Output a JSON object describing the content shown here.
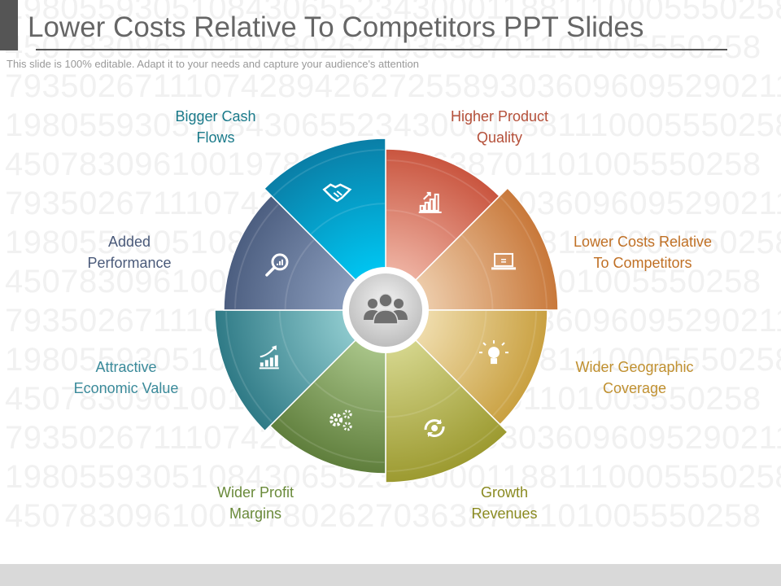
{
  "header": {
    "title": "Lower Costs Relative To Competitors PPT Slides",
    "subtitle": "This slide is 100% editable. Adapt it to your needs and capture your audience's attention"
  },
  "watermark": {
    "rows": [
      "1980559305108430655234300011881110005550258",
      "4507830961001978026270363870110100555025​8",
      "7935026711107428942627255893036096095290211"
    ]
  },
  "center": {
    "icon": "people-group-icon",
    "color": "#7a7a7a"
  },
  "segments": [
    {
      "label_lines": [
        "Higher Product",
        "Quality"
      ],
      "icon": "bar-chart-growth-icon",
      "color": "#c9553f",
      "light": "#eeb2a2",
      "label_color": "#b5503a"
    },
    {
      "label_lines": [
        "Lower Costs Relative",
        "To Competitors"
      ],
      "icon": "laptop-icon",
      "color": "#c8783a",
      "light": "#eccaa8",
      "label_color": "#c07025"
    },
    {
      "label_lines": [
        "Wider Geographic",
        "Coverage"
      ],
      "icon": "lightbulb-icon",
      "color": "#c9a040",
      "light": "#efdcac",
      "label_color": "#c09030"
    },
    {
      "label_lines": [
        "Growth",
        "Revenues"
      ],
      "icon": "refresh-gear-icon",
      "color": "#9c9a30",
      "light": "#d3d48a",
      "label_color": "#8a8a20"
    },
    {
      "label_lines": [
        "Wider Profit",
        "Margins"
      ],
      "icon": "gears-icon",
      "color": "#5f7e3c",
      "light": "#a8c488",
      "label_color": "#6a8a3a"
    },
    {
      "label_lines": [
        "Attractive",
        "Economic Value"
      ],
      "icon": "rising-chart-icon",
      "color": "#2f7a86",
      "light": "#8cc8cc",
      "label_color": "#3a8a9a"
    },
    {
      "label_lines": [
        "Added",
        "Performance"
      ],
      "icon": "magnifier-chart-icon",
      "color": "#4c5e80",
      "light": "#8a9cbc",
      "label_color": "#4a5a7a"
    },
    {
      "label_lines": [
        "Bigger Cash",
        "Flows"
      ],
      "icon": "handshake-icon",
      "color": "#0a7ea6",
      "light": "#00c4f0",
      "label_color": "#1a7a8a"
    }
  ]
}
